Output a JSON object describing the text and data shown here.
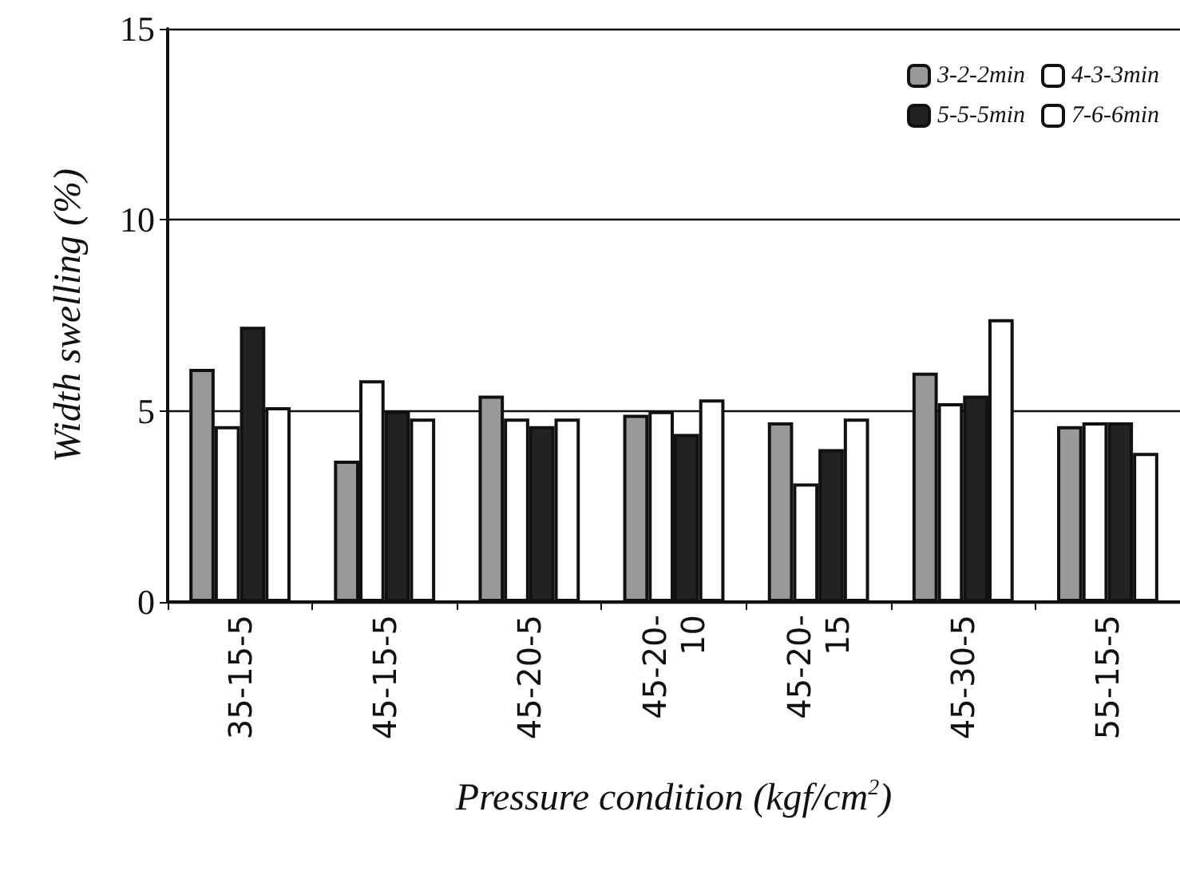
{
  "chart_data": {
    "type": "bar",
    "xlabel": "Pressure condition (kgf/cm$^{2}$)",
    "ylabel": "Width swelling (%)",
    "categories": [
      "35-15-5",
      "45-15-5",
      "45-20-5",
      "45-20-10",
      "45-20-15",
      "45-30-5",
      "55-15-5"
    ],
    "series": [
      {
        "name": "3-2-2min",
        "color": "#999999",
        "values": [
          6.1,
          3.7,
          5.4,
          4.9,
          4.7,
          6.0,
          4.6
        ]
      },
      {
        "name": "4-3-3min",
        "color": "#ffffff",
        "values": [
          4.6,
          5.8,
          4.8,
          5.0,
          3.1,
          5.2,
          4.7
        ]
      },
      {
        "name": "5-5-5min",
        "color": "#222222",
        "values": [
          7.2,
          5.0,
          4.6,
          4.4,
          4.0,
          5.4,
          4.7
        ]
      },
      {
        "name": "7-6-6min",
        "color": "#ffffff",
        "values": [
          5.1,
          4.8,
          4.8,
          5.3,
          4.8,
          7.4,
          3.9
        ]
      }
    ],
    "ylim": [
      0,
      15
    ],
    "yticks": [
      0,
      5,
      10,
      15
    ],
    "grid": "y",
    "legend": "top right"
  }
}
